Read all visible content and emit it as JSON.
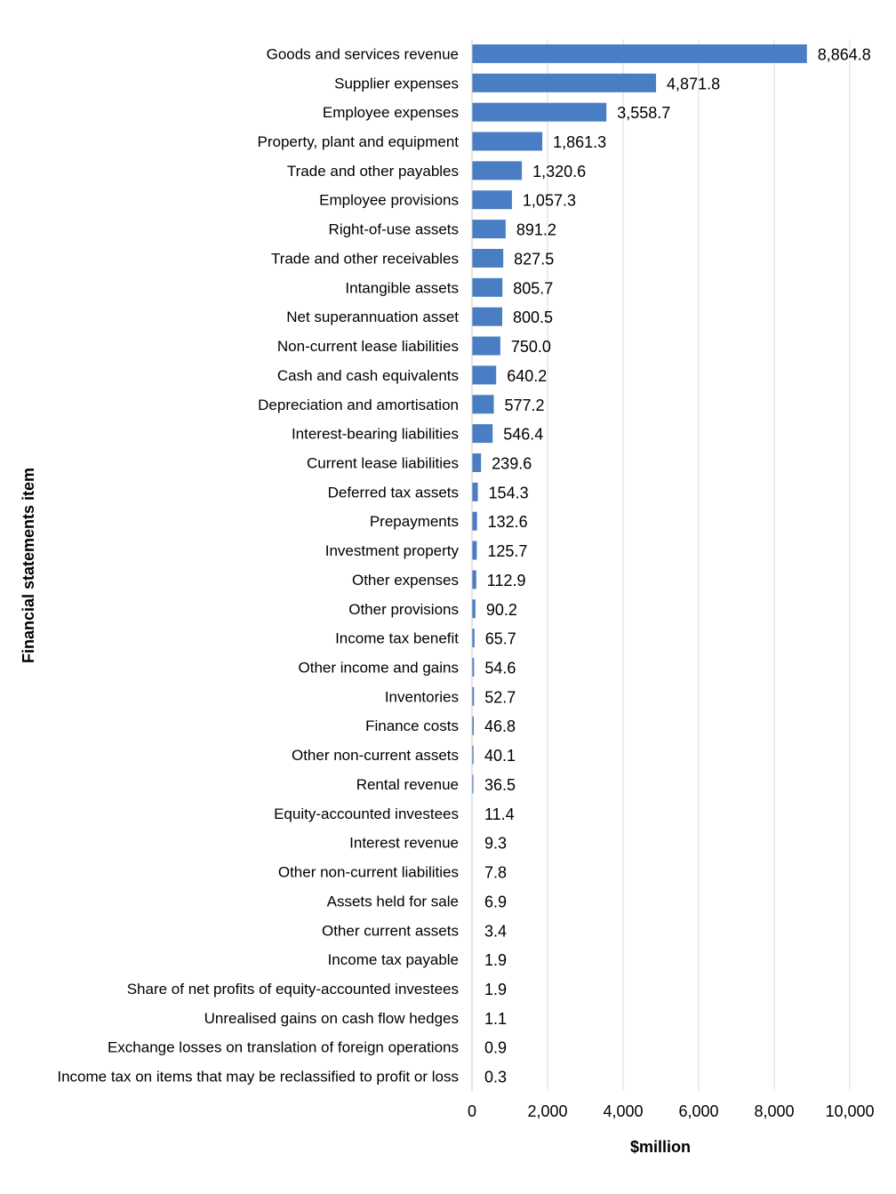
{
  "chart_data": {
    "type": "bar",
    "orientation": "horizontal",
    "xlabel": "$million",
    "ylabel": "Financial statements item",
    "xlim": [
      0,
      10000
    ],
    "xticks": [
      0,
      2000,
      4000,
      6000,
      8000,
      10000
    ],
    "xtick_labels": [
      "0",
      "2,000",
      "4,000",
      "6,000",
      "8,000",
      "10,000"
    ],
    "grid": "vertical",
    "legend": "none",
    "bar_color": "#4a7ec4",
    "categories": [
      "Goods and services revenue",
      "Supplier expenses",
      "Employee expenses",
      "Property, plant and equipment",
      "Trade and other payables",
      "Employee provisions",
      "Right-of-use assets",
      "Trade and other receivables",
      "Intangible assets",
      "Net superannuation asset",
      "Non-current lease liabilities",
      "Cash and cash equivalents",
      "Depreciation and amortisation",
      "Interest-bearing liabilities",
      "Current lease liabilities",
      "Deferred tax assets",
      "Prepayments",
      "Investment property",
      "Other expenses",
      "Other provisions",
      "Income tax benefit",
      "Other income and gains",
      "Inventories",
      "Finance costs",
      "Other non-current assets",
      "Rental revenue",
      "Equity-accounted investees",
      "Interest revenue",
      "Other non-current liabilities",
      "Assets held for sale",
      "Other current assets",
      "Income tax payable",
      "Share of net profits of equity-accounted investees",
      "Unrealised gains on cash flow hedges",
      "Exchange losses on translation of foreign operations",
      "Income tax on items that may be reclassified to profit or loss"
    ],
    "values": [
      8864.8,
      4871.8,
      3558.7,
      1861.3,
      1320.6,
      1057.3,
      891.2,
      827.5,
      805.7,
      800.5,
      750.0,
      640.2,
      577.2,
      546.4,
      239.6,
      154.3,
      132.6,
      125.7,
      112.9,
      90.2,
      65.7,
      54.6,
      52.7,
      46.8,
      40.1,
      36.5,
      11.4,
      9.3,
      7.8,
      6.9,
      3.4,
      1.9,
      1.9,
      1.1,
      0.9,
      0.3
    ],
    "value_labels": [
      "8,864.8",
      "4,871.8",
      "3,558.7",
      "1,861.3",
      "1,320.6",
      "1,057.3",
      "891.2",
      "827.5",
      "805.7",
      "800.5",
      "750.0",
      "640.2",
      "577.2",
      "546.4",
      "239.6",
      "154.3",
      "132.6",
      "125.7",
      "112.9",
      "90.2",
      "65.7",
      "54.6",
      "52.7",
      "46.8",
      "40.1",
      "36.5",
      "11.4",
      "9.3",
      "7.8",
      "6.9",
      "3.4",
      "1.9",
      "1.9",
      "1.1",
      "0.9",
      "0.3"
    ]
  }
}
